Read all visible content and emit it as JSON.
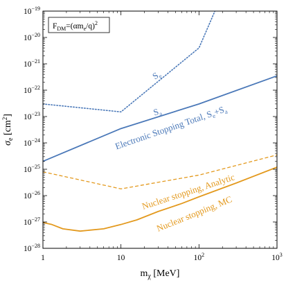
{
  "chart_data": {
    "type": "line",
    "xscale": "log",
    "yscale": "log",
    "xlim": [
      1,
      1000
    ],
    "ylim": [
      1e-28,
      1e-19
    ],
    "xlabel": "m_χ [MeV]",
    "ylabel": "σ_e [cm²]",
    "x_ticks": [
      {
        "v": 1,
        "base": "1",
        "exp": ""
      },
      {
        "v": 10,
        "base": "10",
        "exp": ""
      },
      {
        "v": 100,
        "base": "10",
        "exp": "2"
      },
      {
        "v": 1000,
        "base": "10",
        "exp": "3"
      }
    ],
    "y_ticks": [
      {
        "v": 1e-28,
        "base": "10",
        "exp": "−28"
      },
      {
        "v": 1e-27,
        "base": "10",
        "exp": "−27"
      },
      {
        "v": 1e-26,
        "base": "10",
        "exp": "−26"
      },
      {
        "v": 1e-25,
        "base": "10",
        "exp": "−25"
      },
      {
        "v": 1e-24,
        "base": "10",
        "exp": "−24"
      },
      {
        "v": 1e-23,
        "base": "10",
        "exp": "−23"
      },
      {
        "v": 1e-22,
        "base": "10",
        "exp": "−22"
      },
      {
        "v": 1e-21,
        "base": "10",
        "exp": "−21"
      },
      {
        "v": 1e-20,
        "base": "10",
        "exp": "−20"
      },
      {
        "v": 1e-19,
        "base": "10",
        "exp": "−19"
      }
    ],
    "legend_box": "F_DM=(αm_e/q)²",
    "series": [
      {
        "id": "s-e",
        "label": "S_e",
        "color": "#4a78b8",
        "style": "dotted",
        "x": [
          1,
          10,
          100,
          160
        ],
        "y": [
          3e-23,
          1.5e-23,
          4e-21,
          1e-19
        ]
      },
      {
        "id": "electronic-total",
        "label": "Electronic Stopping Total, S_e+S_a",
        "color": "#4a78b8",
        "style": "solid",
        "x": [
          1,
          10,
          100,
          1000
        ],
        "y": [
          2e-25,
          3.5e-24,
          3e-23,
          3.5e-22
        ]
      },
      {
        "id": "nuclear-analytic",
        "label": "Nuclear stopping, Analytic",
        "color": "#e3991d",
        "style": "dashed",
        "x": [
          1,
          10,
          100,
          1000
        ],
        "y": [
          8e-26,
          1.8e-26,
          6e-26,
          3.5e-25
        ]
      },
      {
        "id": "nuclear-mc",
        "label": "Nuclear stopping, MC",
        "color": "#e3991d",
        "style": "solid",
        "x": [
          1,
          1.3,
          1.8,
          3,
          6,
          10,
          16,
          30,
          60,
          100,
          300,
          1000
        ],
        "y": [
          9.5e-28,
          8e-28,
          5.5e-28,
          4.5e-28,
          5.5e-28,
          8e-28,
          1.2e-27,
          2.5e-27,
          5e-27,
          9e-27,
          3e-26,
          1.2e-25
        ]
      }
    ],
    "annotations": [
      {
        "id": "ann-se",
        "base": "S",
        "sub": "e",
        "tail": "",
        "color": "#4a78b8",
        "x": 30,
        "y": 3e-22,
        "angle": -32
      },
      {
        "id": "ann-sa",
        "base": "S",
        "sub": "a",
        "tail": "",
        "color": "#4a78b8",
        "x": 30,
        "y": 1.2e-23,
        "angle": -18
      },
      {
        "id": "ann-electronic",
        "base": "Electronic Stopping Total, S",
        "sub": "e",
        "tail": "+S",
        "sub2": "a",
        "color": "#4a78b8",
        "x": 45,
        "y": 3e-24,
        "angle": -19
      },
      {
        "id": "ann-analytic",
        "base": "Nuclear stopping, Analytic",
        "sub": "",
        "tail": "",
        "color": "#e3991d",
        "x": 75,
        "y": 1.1e-26,
        "angle": -18
      },
      {
        "id": "ann-mc",
        "base": "Nuclear stopping, MC",
        "sub": "",
        "tail": "",
        "color": "#e3991d",
        "x": 90,
        "y": 1.6e-27,
        "angle": -22
      }
    ]
  }
}
